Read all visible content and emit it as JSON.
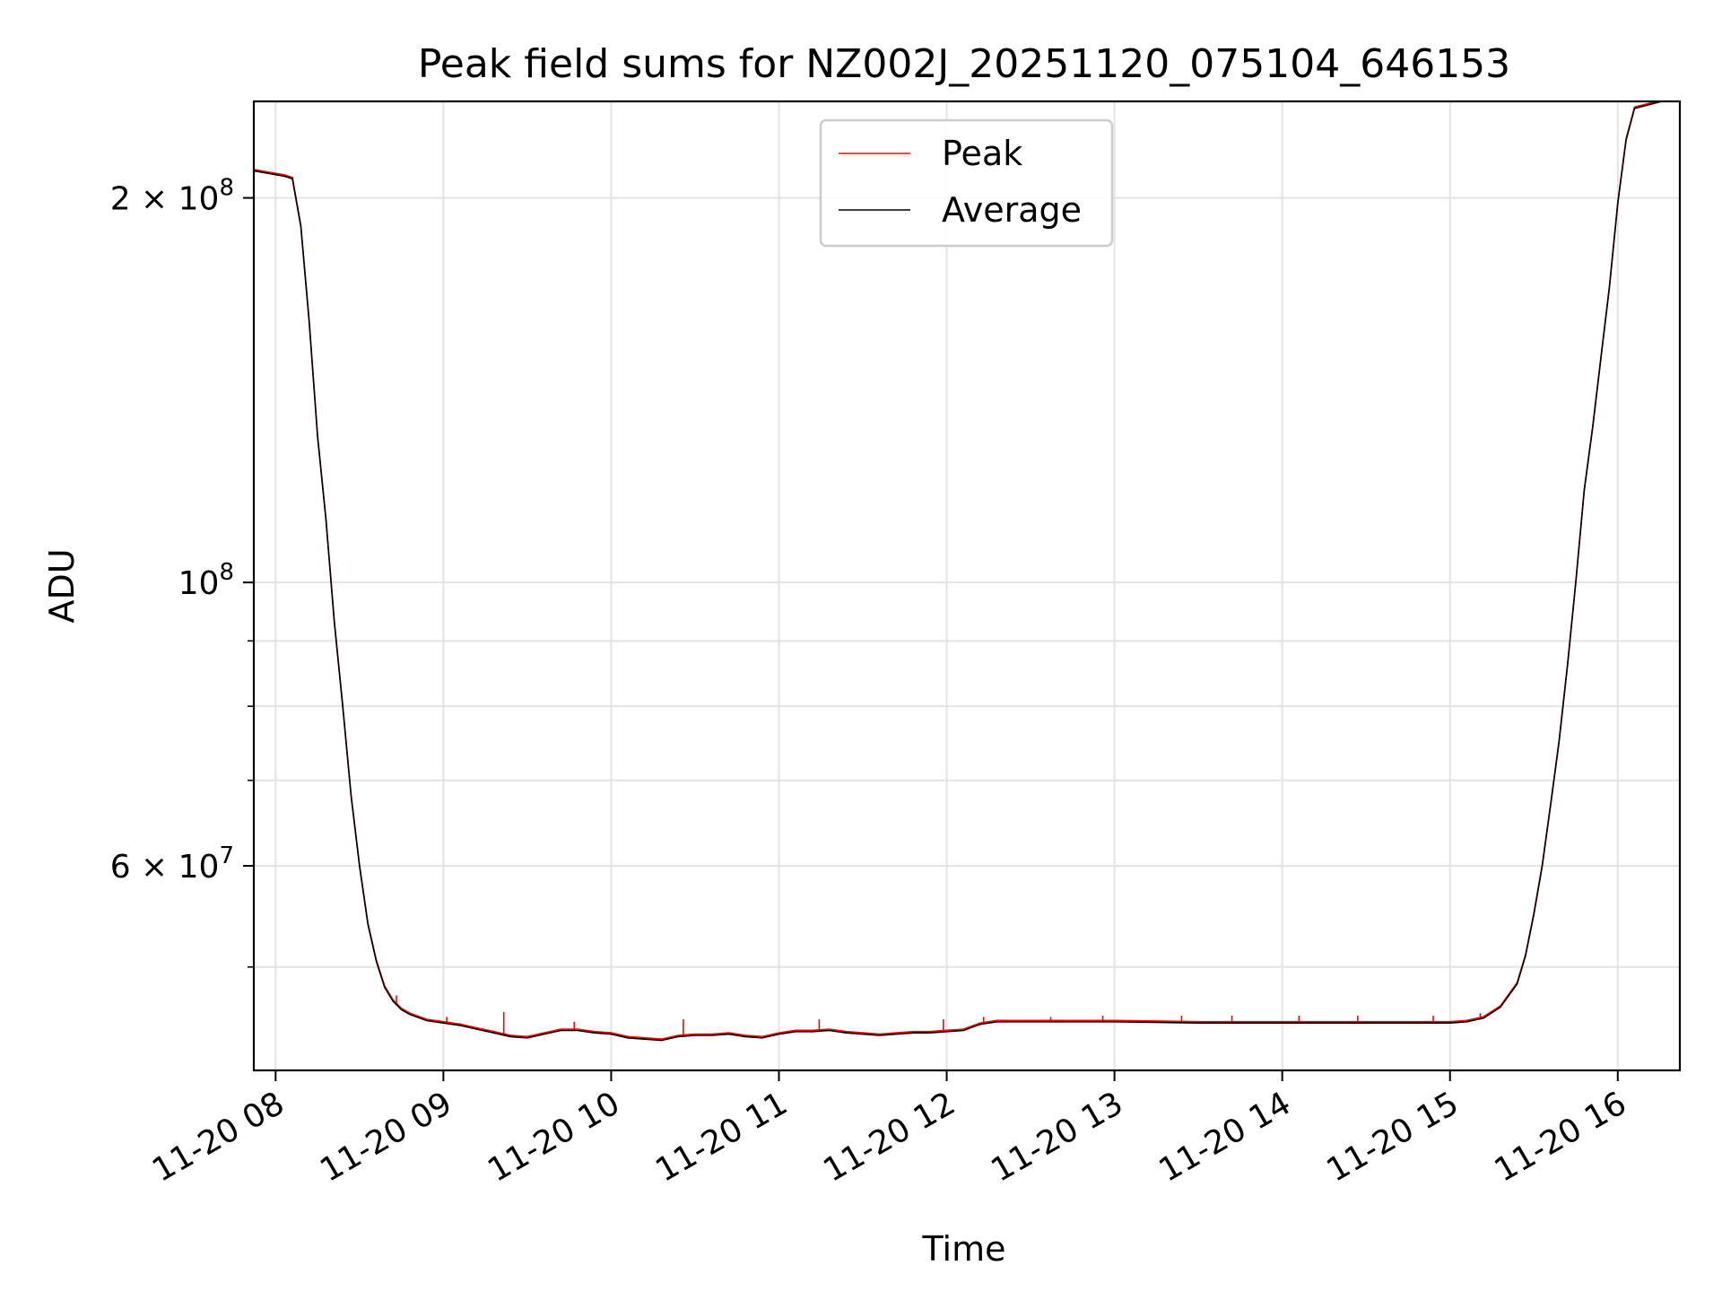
{
  "chart_data": {
    "type": "line",
    "title": "Peak field sums for NZ002J_20251120_075104_646153",
    "xlabel": "Time",
    "ylabel": "ADU",
    "yscale": "log",
    "xlim_hours": [
      7.87,
      16.37
    ],
    "ylim": [
      41500000,
      238000000
    ],
    "grid": true,
    "legend_position": "upper-center",
    "x_ticks": [
      {
        "hour": 8,
        "label": "11-20 08"
      },
      {
        "hour": 9,
        "label": "11-20 09"
      },
      {
        "hour": 10,
        "label": "11-20 10"
      },
      {
        "hour": 11,
        "label": "11-20 11"
      },
      {
        "hour": 12,
        "label": "11-20 12"
      },
      {
        "hour": 13,
        "label": "11-20 13"
      },
      {
        "hour": 14,
        "label": "11-20 14"
      },
      {
        "hour": 15,
        "label": "11-20 15"
      },
      {
        "hour": 16,
        "label": "11-20 16"
      }
    ],
    "y_ticks": [
      {
        "value": 200000000,
        "base": "2 × 10",
        "exp": "8"
      },
      {
        "value": 100000000,
        "base": "10",
        "exp": "8"
      },
      {
        "value": 60000000,
        "base": "6 × 10",
        "exp": "7"
      }
    ],
    "y_minor_ticks": [
      50000000,
      70000000,
      80000000,
      90000000
    ],
    "series": [
      {
        "name": "Peak",
        "color": "#ff0000",
        "spikes": [
          {
            "hour": 8.72,
            "value": 47500000
          },
          {
            "hour": 9.02,
            "value": 45700000
          },
          {
            "hour": 9.36,
            "value": 46100000
          },
          {
            "hour": 9.78,
            "value": 45300000
          },
          {
            "hour": 10.43,
            "value": 45500000
          },
          {
            "hour": 11.24,
            "value": 45500000
          },
          {
            "hour": 11.98,
            "value": 45500000
          },
          {
            "hour": 12.22,
            "value": 45700000
          },
          {
            "hour": 12.62,
            "value": 45700000
          },
          {
            "hour": 12.93,
            "value": 45800000
          },
          {
            "hour": 13.4,
            "value": 45800000
          },
          {
            "hour": 13.7,
            "value": 45800000
          },
          {
            "hour": 14.1,
            "value": 45800000
          },
          {
            "hour": 14.45,
            "value": 45800000
          },
          {
            "hour": 14.9,
            "value": 45800000
          },
          {
            "hour": 15.18,
            "value": 46000000
          }
        ]
      },
      {
        "name": "Average",
        "color": "#000000",
        "points": [
          [
            7.87,
            210000000
          ],
          [
            8.05,
            208000000
          ],
          [
            8.1,
            207000000
          ],
          [
            8.15,
            190000000
          ],
          [
            8.2,
            160000000
          ],
          [
            8.25,
            130000000
          ],
          [
            8.3,
            112000000
          ],
          [
            8.35,
            93000000
          ],
          [
            8.4,
            80000000
          ],
          [
            8.45,
            68000000
          ],
          [
            8.5,
            60000000
          ],
          [
            8.55,
            54000000
          ],
          [
            8.6,
            50500000
          ],
          [
            8.65,
            48200000
          ],
          [
            8.7,
            47000000
          ],
          [
            8.75,
            46300000
          ],
          [
            8.8,
            45900000
          ],
          [
            8.9,
            45400000
          ],
          [
            9.0,
            45200000
          ],
          [
            9.1,
            45000000
          ],
          [
            9.2,
            44700000
          ],
          [
            9.3,
            44400000
          ],
          [
            9.4,
            44100000
          ],
          [
            9.5,
            44000000
          ],
          [
            9.6,
            44300000
          ],
          [
            9.7,
            44600000
          ],
          [
            9.8,
            44600000
          ],
          [
            9.9,
            44400000
          ],
          [
            10.0,
            44300000
          ],
          [
            10.1,
            44000000
          ],
          [
            10.2,
            43900000
          ],
          [
            10.3,
            43800000
          ],
          [
            10.4,
            44100000
          ],
          [
            10.5,
            44200000
          ],
          [
            10.6,
            44200000
          ],
          [
            10.7,
            44300000
          ],
          [
            10.8,
            44100000
          ],
          [
            10.9,
            44000000
          ],
          [
            11.0,
            44300000
          ],
          [
            11.1,
            44500000
          ],
          [
            11.2,
            44500000
          ],
          [
            11.3,
            44600000
          ],
          [
            11.4,
            44400000
          ],
          [
            11.5,
            44300000
          ],
          [
            11.6,
            44200000
          ],
          [
            11.7,
            44300000
          ],
          [
            11.8,
            44400000
          ],
          [
            11.9,
            44400000
          ],
          [
            12.0,
            44500000
          ],
          [
            12.1,
            44600000
          ],
          [
            12.2,
            45100000
          ],
          [
            12.3,
            45300000
          ],
          [
            12.5,
            45300000
          ],
          [
            12.8,
            45300000
          ],
          [
            13.0,
            45300000
          ],
          [
            13.5,
            45200000
          ],
          [
            14.0,
            45200000
          ],
          [
            14.5,
            45200000
          ],
          [
            15.0,
            45200000
          ],
          [
            15.1,
            45300000
          ],
          [
            15.2,
            45600000
          ],
          [
            15.3,
            46500000
          ],
          [
            15.4,
            48500000
          ],
          [
            15.45,
            51000000
          ],
          [
            15.5,
            55000000
          ],
          [
            15.55,
            60000000
          ],
          [
            15.6,
            67000000
          ],
          [
            15.65,
            75000000
          ],
          [
            15.7,
            86000000
          ],
          [
            15.75,
            100000000
          ],
          [
            15.8,
            118000000
          ],
          [
            15.85,
            132000000
          ],
          [
            15.9,
            150000000
          ],
          [
            15.95,
            170000000
          ],
          [
            16.0,
            198000000
          ],
          [
            16.05,
            222000000
          ],
          [
            16.1,
            235000000
          ],
          [
            16.37,
            240000000
          ]
        ]
      }
    ]
  }
}
